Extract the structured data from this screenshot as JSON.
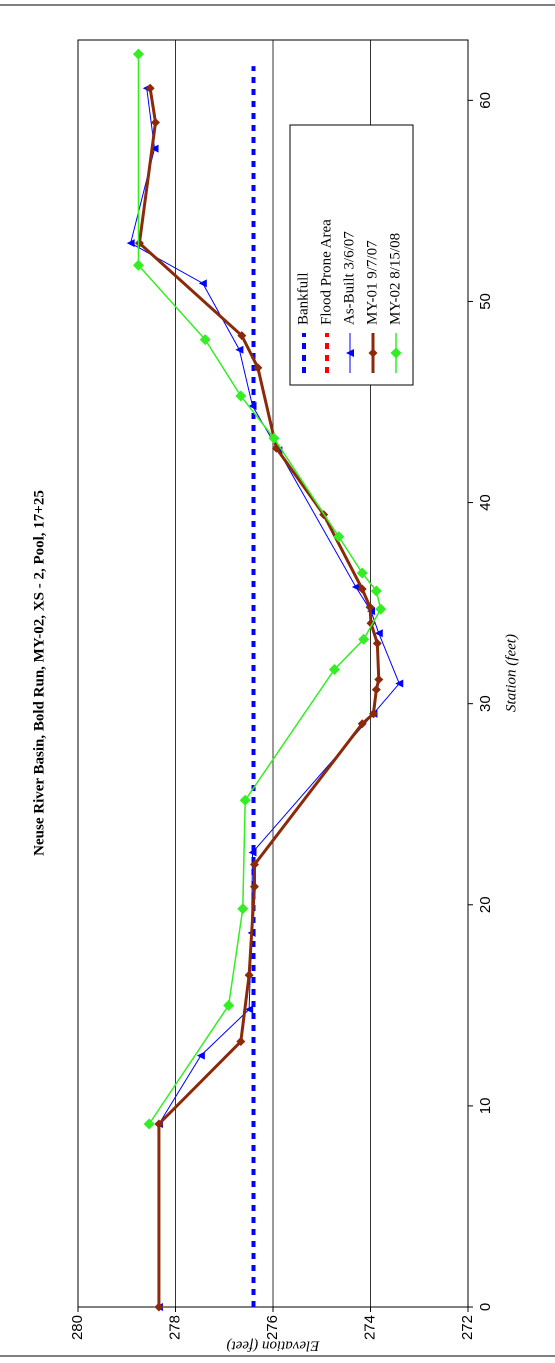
{
  "chart_data": {
    "type": "line",
    "title": "Neuse River Basin, Bold Run, MY-02, XS - 2, Pool, 17+25",
    "x_label": "Station (feet)",
    "y_label": "Elevation (feet)",
    "xlim": [
      0,
      63
    ],
    "ylim": [
      272,
      280
    ],
    "xticks": [
      0,
      10,
      20,
      30,
      40,
      50,
      60
    ],
    "yticks": [
      272,
      274,
      276,
      278,
      280
    ],
    "grid": true,
    "legend": "upper right",
    "series": [
      {
        "name": "Bankfull",
        "color": "#0000ff",
        "style": "dashed",
        "marker": "none",
        "width": 4,
        "x": [
          0,
          61.7
        ],
        "values": [
          276.4,
          276.4
        ]
      },
      {
        "name": "Flood Prone Area",
        "color": "#ff0000",
        "style": "dashed",
        "marker": "none",
        "width": 4,
        "x": [],
        "values": []
      },
      {
        "name": "As-Built 3/6/07",
        "color": "#0000ff",
        "style": "solid",
        "marker": "triangle",
        "width": 1,
        "x": [
          0,
          9.1,
          12.5,
          14.8,
          18.6,
          22.6,
          29.5,
          31.0,
          33.5,
          34.6,
          35.8,
          42.6,
          44.8,
          47.6,
          50.9,
          52.9,
          57.6,
          60.6
        ],
        "values": [
          278.34,
          278.34,
          277.48,
          276.49,
          276.44,
          276.42,
          273.94,
          273.41,
          273.83,
          273.99,
          274.3,
          275.89,
          276.42,
          276.69,
          277.44,
          278.92,
          278.43,
          278.59
        ]
      },
      {
        "name": "MY-01 9/7/07",
        "color": "#8b2a0a",
        "style": "solid",
        "marker": "diamond",
        "width": 3,
        "x": [
          0,
          9.1,
          13.2,
          16.5,
          20.9,
          22.0,
          29.0,
          29.5,
          30.7,
          31.2,
          33.0,
          34.0,
          34.8,
          35.7,
          39.4,
          42.7,
          46.7,
          48.3,
          52.9,
          58.9,
          60.6
        ],
        "values": [
          278.34,
          278.34,
          276.66,
          276.49,
          276.38,
          276.38,
          274.17,
          273.94,
          273.88,
          273.83,
          273.86,
          273.99,
          274.01,
          274.17,
          274.96,
          275.93,
          276.31,
          276.64,
          278.74,
          278.41,
          278.52
        ]
      },
      {
        "name": "MY-02 8/15/08",
        "color": "#33ee22",
        "style": "solid",
        "marker": "diamond",
        "width": 1.5,
        "x": [
          9.1,
          15.0,
          19.8,
          25.2,
          31.7,
          33.2,
          34.7,
          35.6,
          36.5,
          38.3,
          43.2,
          45.3,
          48.1,
          51.8,
          62.3
        ],
        "values": [
          278.54,
          276.91,
          276.62,
          276.57,
          274.74,
          274.14,
          273.79,
          273.88,
          274.17,
          274.65,
          275.98,
          276.66,
          277.39,
          278.76,
          278.76
        ]
      }
    ]
  }
}
